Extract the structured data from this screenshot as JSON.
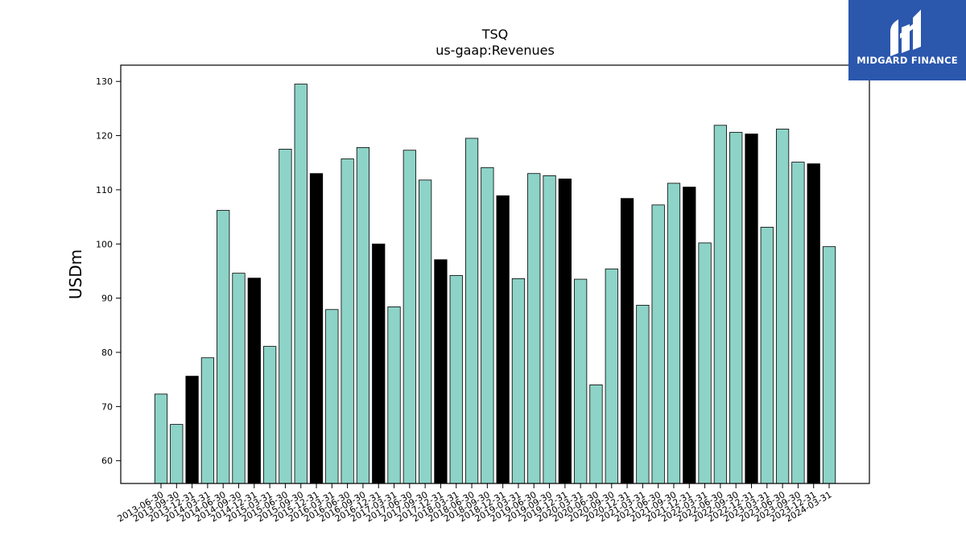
{
  "chart_data": {
    "type": "bar",
    "title": "TSQ",
    "subtitle": "us-gaap:Revenues",
    "xlabel": "",
    "ylabel": "USDm",
    "ylim": [
      55.8,
      133
    ],
    "yticks": [
      60,
      70,
      80,
      90,
      100,
      110,
      120,
      130
    ],
    "grid": false,
    "categories": [
      "2013-06-30",
      "2013-09-30",
      "2013-12-31",
      "2014-03-31",
      "2014-06-30",
      "2014-09-30",
      "2014-12-31",
      "2015-03-31",
      "2015-06-30",
      "2015-09-30",
      "2015-12-31",
      "2016-03-31",
      "2016-06-30",
      "2016-09-30",
      "2016-12-31",
      "2017-03-31",
      "2017-06-30",
      "2017-09-30",
      "2017-12-31",
      "2018-03-31",
      "2018-06-30",
      "2018-09-30",
      "2018-12-31",
      "2019-03-31",
      "2019-06-30",
      "2019-09-30",
      "2019-12-31",
      "2020-03-31",
      "2020-06-30",
      "2020-09-30",
      "2020-12-31",
      "2021-03-31",
      "2021-06-30",
      "2021-09-30",
      "2021-12-31",
      "2022-03-31",
      "2022-06-30",
      "2022-09-30",
      "2022-12-31",
      "2023-03-31",
      "2023-06-30",
      "2023-09-30",
      "2023-12-31",
      "2024-03-31"
    ],
    "values": [
      72.3,
      66.7,
      75.6,
      79.0,
      106.2,
      94.6,
      93.7,
      81.1,
      117.5,
      129.5,
      113.0,
      87.9,
      115.7,
      117.8,
      100.0,
      88.4,
      117.3,
      111.8,
      97.1,
      94.2,
      119.5,
      114.1,
      108.9,
      93.6,
      113.0,
      112.6,
      112.0,
      93.5,
      74.0,
      95.4,
      108.4,
      88.7,
      107.2,
      111.2,
      110.5,
      100.2,
      121.9,
      120.6,
      120.3,
      103.1,
      121.2,
      115.1,
      114.8,
      99.5
    ],
    "colors": {
      "bar": "#8dd3c7",
      "q4_bar": "#000000",
      "edge": "#000000"
    }
  },
  "logo": {
    "text": "MIDGARD FINANCE",
    "background": "#2b57ad"
  }
}
